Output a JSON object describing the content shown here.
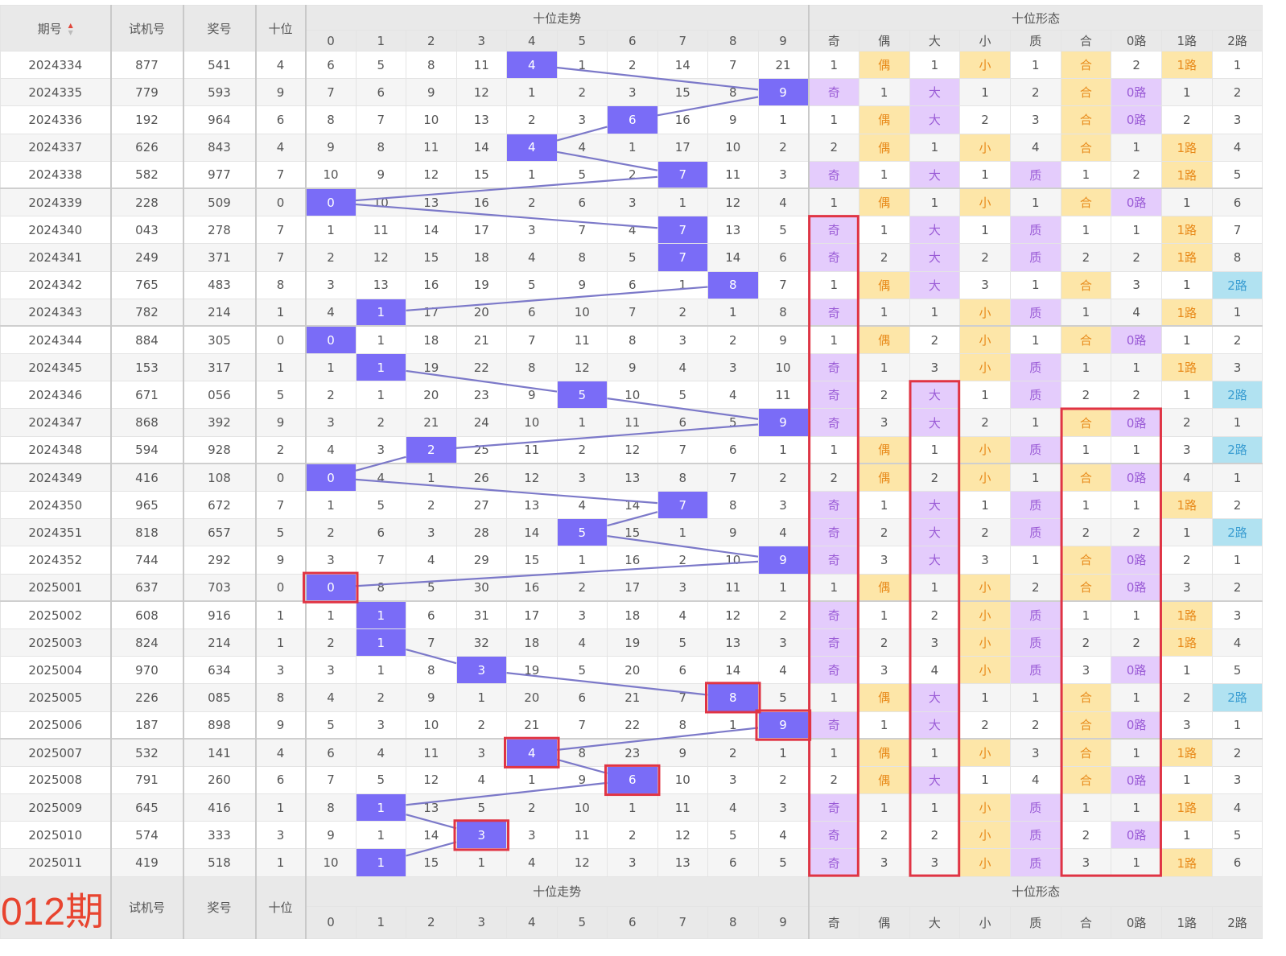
{
  "header": {
    "period": "期号",
    "test": "试机号",
    "prize": "奖号",
    "tens": "十位",
    "trend_title": "十位走势",
    "form_title": "十位形态",
    "digits": [
      "0",
      "1",
      "2",
      "3",
      "4",
      "5",
      "6",
      "7",
      "8",
      "9"
    ],
    "form_labels": [
      "奇",
      "偶",
      "大",
      "小",
      "质",
      "合",
      "0路",
      "1路",
      "2路"
    ]
  },
  "footer": {
    "label": "012期",
    "test": "试机号",
    "prize": "奖号",
    "tens": "十位",
    "trend_title": "十位走势",
    "form_title": "十位形态",
    "digits": [
      "0",
      "1",
      "2",
      "3",
      "4",
      "5",
      "6",
      "7",
      "8",
      "9"
    ],
    "form_labels": [
      "奇",
      "偶",
      "大",
      "小",
      "质",
      "合",
      "0路",
      "1路",
      "2路"
    ]
  },
  "rows": [
    {
      "period": "2024334",
      "test": "877",
      "prize": "541",
      "tens": "4",
      "trend": [
        "6",
        "5",
        "8",
        "11",
        "4",
        "1",
        "2",
        "14",
        "7",
        "21"
      ],
      "form": [
        "1",
        "偶",
        "1",
        "小",
        "1",
        "合",
        "2",
        "1路",
        "1"
      ]
    },
    {
      "period": "2024335",
      "test": "779",
      "prize": "593",
      "tens": "9",
      "trend": [
        "7",
        "6",
        "9",
        "12",
        "1",
        "2",
        "3",
        "15",
        "8",
        "9"
      ],
      "form": [
        "奇",
        "1",
        "大",
        "1",
        "2",
        "合",
        "0路",
        "1",
        "2"
      ]
    },
    {
      "period": "2024336",
      "test": "192",
      "prize": "964",
      "tens": "6",
      "trend": [
        "8",
        "7",
        "10",
        "13",
        "2",
        "3",
        "6",
        "16",
        "9",
        "1"
      ],
      "form": [
        "1",
        "偶",
        "大",
        "2",
        "3",
        "合",
        "0路",
        "2",
        "3"
      ]
    },
    {
      "period": "2024337",
      "test": "626",
      "prize": "843",
      "tens": "4",
      "trend": [
        "9",
        "8",
        "11",
        "14",
        "4",
        "4",
        "1",
        "17",
        "10",
        "2"
      ],
      "form": [
        "2",
        "偶",
        "1",
        "小",
        "4",
        "合",
        "1",
        "1路",
        "4"
      ]
    },
    {
      "period": "2024338",
      "test": "582",
      "prize": "977",
      "tens": "7",
      "trend": [
        "10",
        "9",
        "12",
        "15",
        "1",
        "5",
        "2",
        "7",
        "11",
        "3"
      ],
      "form": [
        "奇",
        "1",
        "大",
        "1",
        "质",
        "1",
        "2",
        "1路",
        "5"
      ]
    },
    {
      "period": "2024339",
      "test": "228",
      "prize": "509",
      "tens": "0",
      "trend": [
        "0",
        "10",
        "13",
        "16",
        "2",
        "6",
        "3",
        "1",
        "12",
        "4"
      ],
      "form": [
        "1",
        "偶",
        "1",
        "小",
        "1",
        "合",
        "0路",
        "1",
        "6"
      ]
    },
    {
      "period": "2024340",
      "test": "043",
      "prize": "278",
      "tens": "7",
      "trend": [
        "1",
        "11",
        "14",
        "17",
        "3",
        "7",
        "4",
        "7",
        "13",
        "5"
      ],
      "form": [
        "奇",
        "1",
        "大",
        "1",
        "质",
        "1",
        "1",
        "1路",
        "7"
      ]
    },
    {
      "period": "2024341",
      "test": "249",
      "prize": "371",
      "tens": "7",
      "trend": [
        "2",
        "12",
        "15",
        "18",
        "4",
        "8",
        "5",
        "7",
        "14",
        "6"
      ],
      "form": [
        "奇",
        "2",
        "大",
        "2",
        "质",
        "2",
        "2",
        "1路",
        "8"
      ]
    },
    {
      "period": "2024342",
      "test": "765",
      "prize": "483",
      "tens": "8",
      "trend": [
        "3",
        "13",
        "16",
        "19",
        "5",
        "9",
        "6",
        "1",
        "8",
        "7"
      ],
      "form": [
        "1",
        "偶",
        "大",
        "3",
        "1",
        "合",
        "3",
        "1",
        "2路"
      ]
    },
    {
      "period": "2024343",
      "test": "782",
      "prize": "214",
      "tens": "1",
      "trend": [
        "4",
        "1",
        "17",
        "20",
        "6",
        "10",
        "7",
        "2",
        "1",
        "8"
      ],
      "form": [
        "奇",
        "1",
        "1",
        "小",
        "质",
        "1",
        "4",
        "1路",
        "1"
      ]
    },
    {
      "period": "2024344",
      "test": "884",
      "prize": "305",
      "tens": "0",
      "trend": [
        "0",
        "1",
        "18",
        "21",
        "7",
        "11",
        "8",
        "3",
        "2",
        "9"
      ],
      "form": [
        "1",
        "偶",
        "2",
        "小",
        "1",
        "合",
        "0路",
        "1",
        "2"
      ]
    },
    {
      "period": "2024345",
      "test": "153",
      "prize": "317",
      "tens": "1",
      "trend": [
        "1",
        "1",
        "19",
        "22",
        "8",
        "12",
        "9",
        "4",
        "3",
        "10"
      ],
      "form": [
        "奇",
        "1",
        "3",
        "小",
        "质",
        "1",
        "1",
        "1路",
        "3"
      ]
    },
    {
      "period": "2024346",
      "test": "671",
      "prize": "056",
      "tens": "5",
      "trend": [
        "2",
        "1",
        "20",
        "23",
        "9",
        "5",
        "10",
        "5",
        "4",
        "11"
      ],
      "form": [
        "奇",
        "2",
        "大",
        "1",
        "质",
        "2",
        "2",
        "1",
        "2路"
      ]
    },
    {
      "period": "2024347",
      "test": "868",
      "prize": "392",
      "tens": "9",
      "trend": [
        "3",
        "2",
        "21",
        "24",
        "10",
        "1",
        "11",
        "6",
        "5",
        "9"
      ],
      "form": [
        "奇",
        "3",
        "大",
        "2",
        "1",
        "合",
        "0路",
        "2",
        "1"
      ]
    },
    {
      "period": "2024348",
      "test": "594",
      "prize": "928",
      "tens": "2",
      "trend": [
        "4",
        "3",
        "2",
        "25",
        "11",
        "2",
        "12",
        "7",
        "6",
        "1"
      ],
      "form": [
        "1",
        "偶",
        "1",
        "小",
        "质",
        "1",
        "1",
        "3",
        "2路"
      ]
    },
    {
      "period": "2024349",
      "test": "416",
      "prize": "108",
      "tens": "0",
      "trend": [
        "0",
        "4",
        "1",
        "26",
        "12",
        "3",
        "13",
        "8",
        "7",
        "2"
      ],
      "form": [
        "2",
        "偶",
        "2",
        "小",
        "1",
        "合",
        "0路",
        "4",
        "1"
      ]
    },
    {
      "period": "2024350",
      "test": "965",
      "prize": "672",
      "tens": "7",
      "trend": [
        "1",
        "5",
        "2",
        "27",
        "13",
        "4",
        "14",
        "7",
        "8",
        "3"
      ],
      "form": [
        "奇",
        "1",
        "大",
        "1",
        "质",
        "1",
        "1",
        "1路",
        "2"
      ]
    },
    {
      "period": "2024351",
      "test": "818",
      "prize": "657",
      "tens": "5",
      "trend": [
        "2",
        "6",
        "3",
        "28",
        "14",
        "5",
        "15",
        "1",
        "9",
        "4"
      ],
      "form": [
        "奇",
        "2",
        "大",
        "2",
        "质",
        "2",
        "2",
        "1",
        "2路"
      ]
    },
    {
      "period": "2024352",
      "test": "744",
      "prize": "292",
      "tens": "9",
      "trend": [
        "3",
        "7",
        "4",
        "29",
        "15",
        "1",
        "16",
        "2",
        "10",
        "9"
      ],
      "form": [
        "奇",
        "3",
        "大",
        "3",
        "1",
        "合",
        "0路",
        "2",
        "1"
      ]
    },
    {
      "period": "2025001",
      "test": "637",
      "prize": "703",
      "tens": "0",
      "trend": [
        "0",
        "8",
        "5",
        "30",
        "16",
        "2",
        "17",
        "3",
        "11",
        "1"
      ],
      "form": [
        "1",
        "偶",
        "1",
        "小",
        "2",
        "合",
        "0路",
        "3",
        "2"
      ]
    },
    {
      "period": "2025002",
      "test": "608",
      "prize": "916",
      "tens": "1",
      "trend": [
        "1",
        "1",
        "6",
        "31",
        "17",
        "3",
        "18",
        "4",
        "12",
        "2"
      ],
      "form": [
        "奇",
        "1",
        "2",
        "小",
        "质",
        "1",
        "1",
        "1路",
        "3"
      ]
    },
    {
      "period": "2025003",
      "test": "824",
      "prize": "214",
      "tens": "1",
      "trend": [
        "2",
        "1",
        "7",
        "32",
        "18",
        "4",
        "19",
        "5",
        "13",
        "3"
      ],
      "form": [
        "奇",
        "2",
        "3",
        "小",
        "质",
        "2",
        "2",
        "1路",
        "4"
      ]
    },
    {
      "period": "2025004",
      "test": "970",
      "prize": "634",
      "tens": "3",
      "trend": [
        "3",
        "1",
        "8",
        "3",
        "19",
        "5",
        "20",
        "6",
        "14",
        "4"
      ],
      "form": [
        "奇",
        "3",
        "4",
        "小",
        "质",
        "3",
        "0路",
        "1",
        "5"
      ]
    },
    {
      "period": "2025005",
      "test": "226",
      "prize": "085",
      "tens": "8",
      "trend": [
        "4",
        "2",
        "9",
        "1",
        "20",
        "6",
        "21",
        "7",
        "8",
        "5"
      ],
      "form": [
        "1",
        "偶",
        "大",
        "1",
        "1",
        "合",
        "1",
        "2",
        "2路"
      ]
    },
    {
      "period": "2025006",
      "test": "187",
      "prize": "898",
      "tens": "9",
      "trend": [
        "5",
        "3",
        "10",
        "2",
        "21",
        "7",
        "22",
        "8",
        "1",
        "9"
      ],
      "form": [
        "奇",
        "1",
        "大",
        "2",
        "2",
        "合",
        "0路",
        "3",
        "1"
      ]
    },
    {
      "period": "2025007",
      "test": "532",
      "prize": "141",
      "tens": "4",
      "trend": [
        "6",
        "4",
        "11",
        "3",
        "4",
        "8",
        "23",
        "9",
        "2",
        "1"
      ],
      "form": [
        "1",
        "偶",
        "1",
        "小",
        "3",
        "合",
        "1",
        "1路",
        "2"
      ]
    },
    {
      "period": "2025008",
      "test": "791",
      "prize": "260",
      "tens": "6",
      "trend": [
        "7",
        "5",
        "12",
        "4",
        "1",
        "9",
        "6",
        "10",
        "3",
        "2"
      ],
      "form": [
        "2",
        "偶",
        "大",
        "1",
        "4",
        "合",
        "0路",
        "1",
        "3"
      ]
    },
    {
      "period": "2025009",
      "test": "645",
      "prize": "416",
      "tens": "1",
      "trend": [
        "8",
        "1",
        "13",
        "5",
        "2",
        "10",
        "1",
        "11",
        "4",
        "3"
      ],
      "form": [
        "奇",
        "1",
        "1",
        "小",
        "质",
        "1",
        "1",
        "1路",
        "4"
      ]
    },
    {
      "period": "2025010",
      "test": "574",
      "prize": "333",
      "tens": "3",
      "trend": [
        "9",
        "1",
        "14",
        "3",
        "3",
        "11",
        "2",
        "12",
        "5",
        "4"
      ],
      "form": [
        "奇",
        "2",
        "2",
        "小",
        "质",
        "2",
        "0路",
        "1",
        "5"
      ]
    },
    {
      "period": "2025011",
      "test": "419",
      "prize": "518",
      "tens": "1",
      "trend": [
        "10",
        "1",
        "15",
        "1",
        "4",
        "12",
        "3",
        "13",
        "6",
        "5"
      ],
      "form": [
        "奇",
        "3",
        "3",
        "小",
        "质",
        "3",
        "1",
        "1路",
        "6"
      ]
    }
  ],
  "annotations": {
    "boxed_trend_rows": [
      19,
      23,
      24,
      25,
      26,
      28
    ],
    "form_boxes": [
      {
        "col_start": 0,
        "col_end": 0,
        "row_start": 6,
        "row_end": 29
      },
      {
        "col_start": 2,
        "col_end": 2,
        "row_start": 12,
        "row_end": 29
      },
      {
        "col_start": 5,
        "col_end": 6,
        "row_start": 13,
        "row_end": 29
      }
    ]
  },
  "colors": {
    "highlight": "#7a6cf7",
    "trend_line": "#7c79c9",
    "annotation": "#e03444",
    "purple_bg": "#e4ccfc",
    "orange_bg": "#fde6a8",
    "blue_bg": "#b1e2f1",
    "footer_label": "#e8442f"
  }
}
